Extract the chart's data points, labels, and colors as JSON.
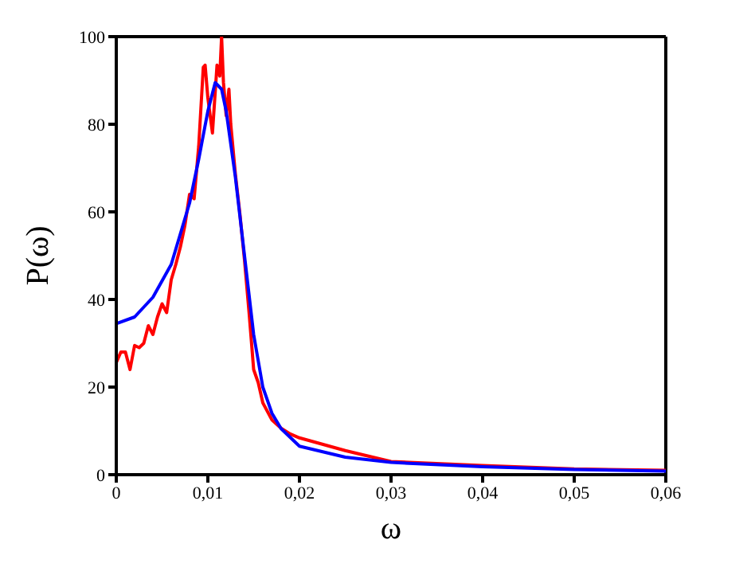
{
  "chart_data": {
    "type": "line",
    "xlabel": "ω",
    "ylabel": "P(ω)",
    "xlim": [
      0,
      0.06
    ],
    "ylim": [
      0,
      100
    ],
    "xticks": [
      0,
      {
        "value": 0.01,
        "label": "0,01"
      },
      {
        "value": 0.02,
        "label": "0,02"
      },
      {
        "value": 0.03,
        "label": "0,03"
      },
      {
        "value": 0.04,
        "label": "0,04"
      },
      {
        "value": 0.05,
        "label": "0,05"
      },
      {
        "value": 0.06,
        "label": "0,06"
      }
    ],
    "yticks": [
      0,
      20,
      40,
      60,
      80,
      100
    ],
    "marker": "none",
    "line_style": "solid",
    "series": [
      {
        "color": "#ff0000",
        "x": [
          0,
          0.0005,
          0.001,
          0.0015,
          0.002,
          0.0025,
          0.003,
          0.0035,
          0.004,
          0.0045,
          0.005,
          0.0055,
          0.006,
          0.0065,
          0.007,
          0.0075,
          0.008,
          0.0085,
          0.009,
          0.0095,
          0.0097,
          0.01,
          0.0105,
          0.011,
          0.0113,
          0.0115,
          0.0117,
          0.012,
          0.0123,
          0.0125,
          0.013,
          0.0135,
          0.014,
          0.0145,
          0.015,
          0.0155,
          0.016,
          0.017,
          0.018,
          0.019,
          0.02,
          0.025,
          0.03,
          0.04,
          0.05,
          0.06
        ],
        "values": [
          25.6,
          28,
          28,
          24,
          29.5,
          29,
          30,
          34,
          32,
          36,
          39,
          37,
          44.5,
          48,
          52,
          57,
          64,
          63,
          75,
          93,
          93.5,
          86,
          78,
          93.5,
          91,
          100,
          89.6,
          82,
          88,
          80,
          68.7,
          59.5,
          49,
          37,
          24,
          21,
          16.4,
          12.5,
          10.6,
          9.3,
          8.4,
          5.5,
          3,
          2.1,
          1.3,
          1
        ]
      },
      {
        "color": "#0000ff",
        "x": [
          0,
          0.002,
          0.004,
          0.006,
          0.008,
          0.009,
          0.01,
          0.0108,
          0.0115,
          0.012,
          0.013,
          0.014,
          0.015,
          0.016,
          0.017,
          0.018,
          0.02,
          0.025,
          0.03,
          0.04,
          0.05,
          0.06
        ],
        "values": [
          34.5,
          36,
          40.5,
          48,
          62,
          72,
          83,
          89.5,
          88,
          83,
          68,
          50,
          32,
          20,
          14,
          10.5,
          6.5,
          4,
          2.8,
          1.8,
          1.2,
          0.8
        ]
      }
    ]
  }
}
